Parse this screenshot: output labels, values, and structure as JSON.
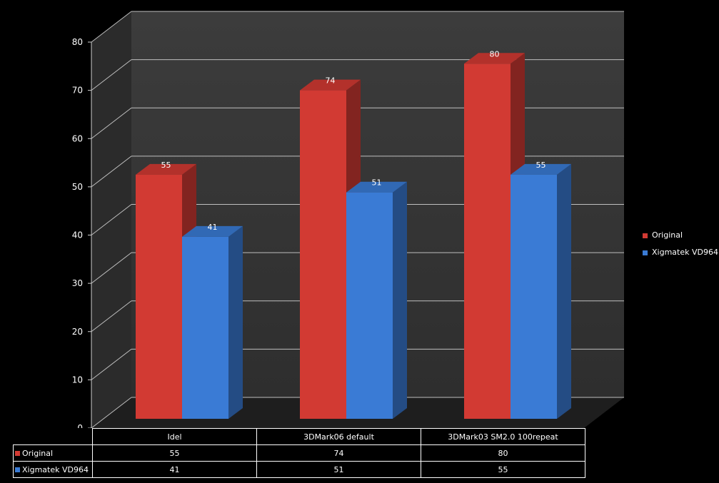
{
  "chart_data": {
    "type": "bar",
    "categories": [
      "Idel",
      "3DMark06 default",
      "3DMark03 SM2.0 100repeat"
    ],
    "series": [
      {
        "name": "Original",
        "values": [
          55,
          74,
          80
        ],
        "color": "#d23a33"
      },
      {
        "name": "Xigmatek VD964",
        "values": [
          41,
          51,
          55
        ],
        "color": "#3a7bd5"
      }
    ],
    "yticks": [
      0,
      10,
      20,
      30,
      40,
      50,
      60,
      70,
      80
    ],
    "ylim": [
      0,
      80
    ],
    "grid": true,
    "legend_position": "right",
    "data_table": true
  },
  "legend": {
    "items": [
      {
        "label": "Original"
      },
      {
        "label": "Xigmatek VD964"
      }
    ]
  },
  "table": {
    "headers": [
      "Idel",
      "3DMark06 default",
      "3DMark03 SM2.0 100repeat"
    ],
    "rows": [
      {
        "label": "Original",
        "values": [
          "55",
          "74",
          "80"
        ]
      },
      {
        "label": "Xigmatek VD964",
        "values": [
          "41",
          "51",
          "55"
        ]
      }
    ]
  }
}
